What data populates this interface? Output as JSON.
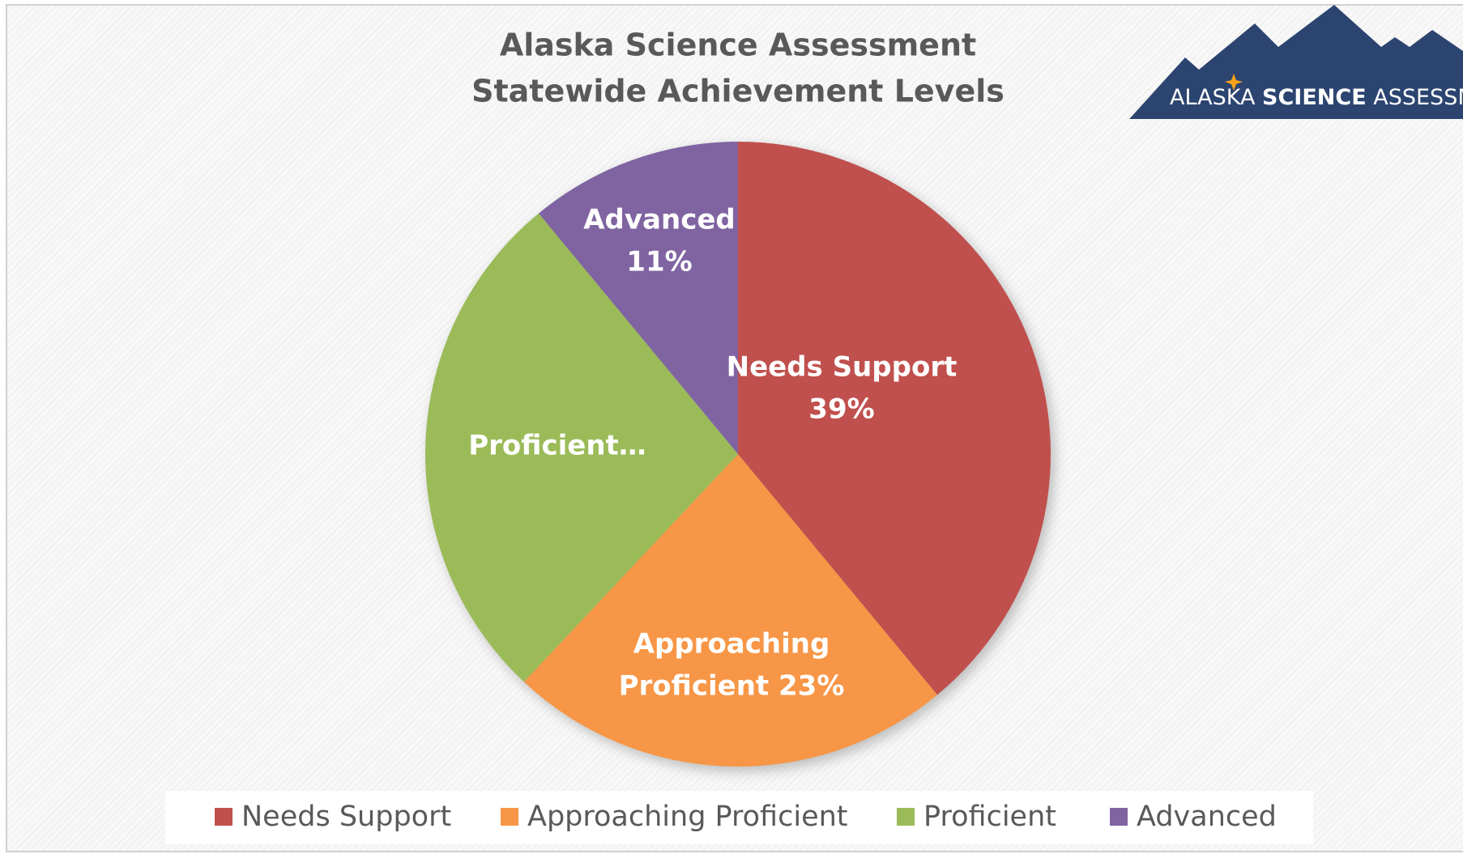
{
  "chart_data": {
    "type": "pie",
    "title": [
      "Alaska Science Assessment",
      "Statewide Achievement Levels"
    ],
    "categories": [
      "Needs Support",
      "Approaching Proficient",
      "Proficient",
      "Advanced"
    ],
    "values": [
      39,
      23,
      27,
      11
    ],
    "colors": [
      "#c0504d",
      "#f79646",
      "#9bbb59",
      "#8064a2"
    ],
    "data_labels": [
      [
        "Needs Support",
        "39%"
      ],
      [
        "Approaching",
        "Proficient 23%"
      ],
      [
        "Proficient…"
      ],
      [
        "Advanced",
        "11%"
      ]
    ],
    "legend": "bottom",
    "logo": [
      "ALASKA",
      "SCIENCE",
      "ASSESSMENT"
    ]
  }
}
